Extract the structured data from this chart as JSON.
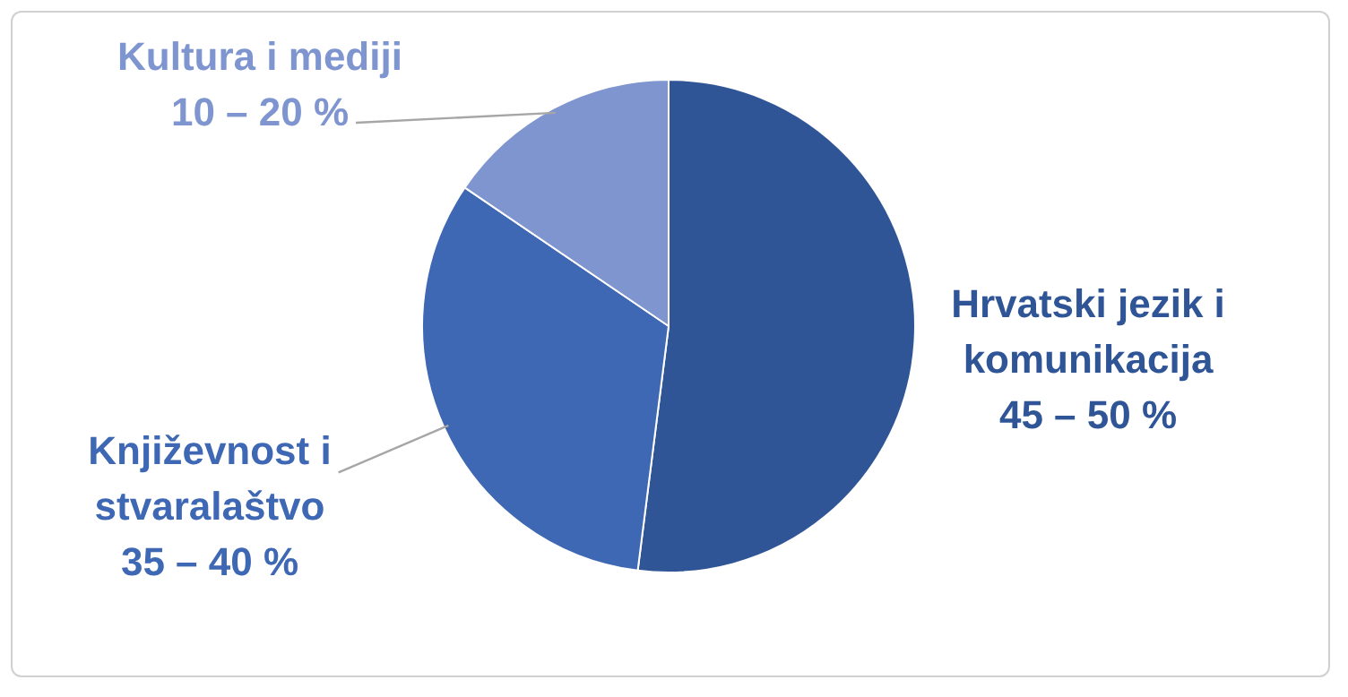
{
  "chart_data": {
    "type": "pie",
    "categories": [
      "Hrvatski jezik i komunikacija",
      "Književnost i stvaralaštvo",
      "Kultura i mediji"
    ],
    "values": [
      52,
      32.5,
      15.5
    ],
    "colors": [
      "#2f5597",
      "#3e67b4",
      "#7f95cf"
    ],
    "annotations": [
      "45 – 50 %",
      "35 – 40 %",
      "10 – 20 %"
    ],
    "legend": false
  }
}
